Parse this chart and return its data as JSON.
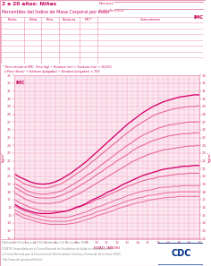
{
  "title_line1": "2 a 20 años: Niñas",
  "title_line2": "Percentiles del Índice de Masa Corporal por edad",
  "nombre_label": "Nombre",
  "archivo_label": "# de Archivo",
  "xlabel": "EDAD (AÑOS)",
  "ylabel": "kg/m²",
  "xmin": 2,
  "xmax": 20,
  "ymin": 12,
  "ymax": 33,
  "bg_color": "#fce8f0",
  "grid_major_color": "#f0a0c0",
  "grid_minor_color": "#f8d0e0",
  "curve_color": "#d4006a",
  "curve_color2": "#e8609a",
  "ages": [
    2,
    2.5,
    3,
    3.5,
    4,
    4.5,
    5,
    5.5,
    6,
    6.5,
    7,
    7.5,
    8,
    8.5,
    9,
    9.5,
    10,
    10.5,
    11,
    11.5,
    12,
    12.5,
    13,
    13.5,
    14,
    14.5,
    15,
    15.5,
    16,
    16.5,
    17,
    17.5,
    18,
    18.5,
    19,
    19.5,
    20
  ],
  "p3": [
    15.3,
    14.9,
    14.6,
    14.4,
    14.2,
    14.0,
    13.9,
    13.8,
    13.8,
    13.8,
    13.8,
    13.9,
    14.0,
    14.2,
    14.4,
    14.6,
    14.9,
    15.1,
    15.3,
    15.5,
    15.8,
    16.0,
    16.2,
    16.4,
    16.6,
    16.7,
    16.9,
    17.0,
    17.1,
    17.2,
    17.3,
    17.3,
    17.4,
    17.4,
    17.4,
    17.4,
    17.4
  ],
  "p5": [
    15.7,
    15.3,
    15.0,
    14.8,
    14.6,
    14.4,
    14.3,
    14.2,
    14.2,
    14.2,
    14.2,
    14.3,
    14.5,
    14.7,
    14.9,
    15.1,
    15.4,
    15.6,
    15.8,
    16.1,
    16.3,
    16.6,
    16.8,
    17.0,
    17.2,
    17.3,
    17.5,
    17.6,
    17.7,
    17.8,
    17.9,
    17.9,
    18.0,
    18.0,
    18.0,
    18.0,
    18.0
  ],
  "p10": [
    16.2,
    15.8,
    15.5,
    15.3,
    15.1,
    14.9,
    14.8,
    14.7,
    14.7,
    14.7,
    14.7,
    14.8,
    15.0,
    15.2,
    15.4,
    15.7,
    16.0,
    16.2,
    16.5,
    16.7,
    17.0,
    17.2,
    17.5,
    17.7,
    17.9,
    18.1,
    18.2,
    18.3,
    18.5,
    18.6,
    18.6,
    18.7,
    18.7,
    18.8,
    18.8,
    18.8,
    18.8
  ],
  "p25": [
    17.0,
    16.6,
    16.3,
    16.0,
    15.8,
    15.6,
    15.5,
    15.5,
    15.5,
    15.5,
    15.5,
    15.7,
    15.9,
    16.1,
    16.4,
    16.6,
    17.0,
    17.2,
    17.5,
    17.8,
    18.1,
    18.4,
    18.7,
    18.9,
    19.2,
    19.4,
    19.6,
    19.7,
    19.9,
    20.0,
    20.1,
    20.2,
    20.3,
    20.3,
    20.4,
    20.4,
    20.4
  ],
  "p50": [
    16.4,
    16.0,
    15.7,
    15.5,
    15.3,
    15.2,
    15.2,
    15.2,
    15.3,
    15.4,
    15.5,
    15.7,
    16.0,
    16.2,
    16.5,
    16.9,
    17.2,
    17.5,
    17.9,
    18.2,
    18.5,
    18.9,
    19.2,
    19.5,
    19.8,
    20.1,
    20.3,
    20.5,
    20.7,
    20.9,
    21.0,
    21.1,
    21.2,
    21.3,
    21.3,
    21.4,
    21.4
  ],
  "p75": [
    17.9,
    17.5,
    17.1,
    16.8,
    16.6,
    16.5,
    16.5,
    16.5,
    16.6,
    16.7,
    17.0,
    17.3,
    17.6,
    17.9,
    18.3,
    18.7,
    19.1,
    19.5,
    19.9,
    20.3,
    20.7,
    21.1,
    21.5,
    21.9,
    22.2,
    22.5,
    22.8,
    23.0,
    23.2,
    23.4,
    23.5,
    23.6,
    23.7,
    23.8,
    23.9,
    23.9,
    24.0
  ],
  "p85": [
    18.6,
    18.2,
    17.8,
    17.5,
    17.3,
    17.2,
    17.2,
    17.2,
    17.3,
    17.5,
    17.8,
    18.1,
    18.5,
    18.9,
    19.3,
    19.7,
    20.2,
    20.6,
    21.1,
    21.5,
    22.0,
    22.4,
    22.8,
    23.3,
    23.7,
    24.0,
    24.3,
    24.6,
    24.8,
    25.0,
    25.2,
    25.3,
    25.4,
    25.5,
    25.5,
    25.6,
    25.6
  ],
  "p90": [
    19.1,
    18.7,
    18.3,
    18.0,
    17.8,
    17.7,
    17.7,
    17.8,
    17.9,
    18.1,
    18.4,
    18.8,
    19.2,
    19.6,
    20.1,
    20.5,
    21.0,
    21.5,
    22.0,
    22.5,
    23.0,
    23.5,
    24.0,
    24.4,
    24.9,
    25.3,
    25.6,
    25.9,
    26.2,
    26.4,
    26.6,
    26.7,
    26.8,
    26.9,
    27.0,
    27.0,
    27.0
  ],
  "p95": [
    19.8,
    19.4,
    19.0,
    18.8,
    18.6,
    18.5,
    18.5,
    18.6,
    18.8,
    19.0,
    19.4,
    19.8,
    20.3,
    20.7,
    21.2,
    21.8,
    22.3,
    22.9,
    23.4,
    24.0,
    24.5,
    25.1,
    25.6,
    26.1,
    26.6,
    27.0,
    27.4,
    27.8,
    28.1,
    28.3,
    28.5,
    28.7,
    28.8,
    28.9,
    29.0,
    29.0,
    29.1
  ],
  "p97": [
    20.3,
    19.9,
    19.6,
    19.3,
    19.1,
    19.0,
    19.0,
    19.1,
    19.3,
    19.6,
    20.0,
    20.4,
    20.9,
    21.4,
    21.9,
    22.5,
    23.1,
    23.7,
    24.3,
    24.9,
    25.5,
    26.1,
    26.7,
    27.2,
    27.7,
    28.2,
    28.6,
    29.0,
    29.3,
    29.6,
    29.8,
    30.0,
    30.2,
    30.3,
    30.4,
    30.5,
    30.5
  ],
  "table_columns": [
    "Fecha",
    "Edad",
    "Peso",
    "Estatura",
    "IMC*",
    "Comentarios"
  ],
  "table_col_widths": [
    0.115,
    0.085,
    0.085,
    0.105,
    0.085,
    0.525
  ],
  "note_text": "* Para calcular el IMC:  Peso (kg) ÷ Estatura (cm) ÷ Estatura (cm) × 10,000",
  "note_text2": "  o Peso (libras) ÷ Estatura (pulgadas) ÷ Estatura (pulgadas) × 703",
  "footer_text": "Publicado el 30 de mayo de 2000 (modificado el 16 de enero de 2001).",
  "footer_text2": "FUENTE: Desarrollado por el Centro Nacional de Estadísticas de Salud en colaboración con",
  "footer_text3": "el Centro Nacional para la Prevención de Enfermedades Crónicas y Promoción de la Salud (2000).",
  "footer_text4": "http://www.cdc.gov/growthcharts",
  "title_color": "#c8005a",
  "text_color": "#d0407a",
  "tick_color": "#d0407a",
  "cdc_blue": "#003087",
  "cdc_red": "#cc0000",
  "outer_border_color": "#e8a0b8"
}
